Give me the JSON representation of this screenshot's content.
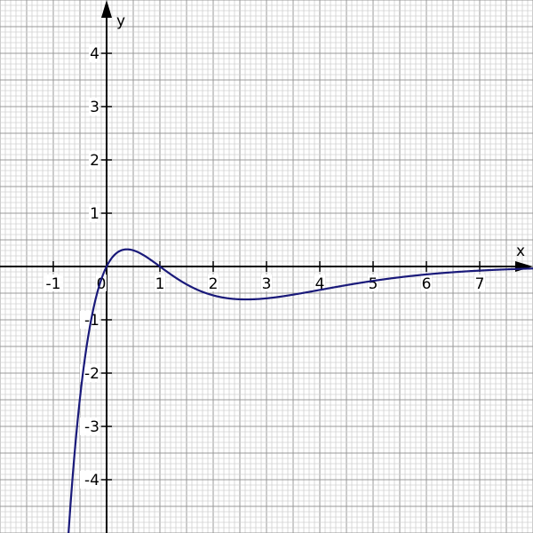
{
  "chart_data": {
    "type": "line",
    "title": "",
    "xlabel": "x",
    "ylabel": "y",
    "xlim": [
      -2,
      8
    ],
    "ylim": [
      -5,
      5
    ],
    "x_ticks": [
      "-1",
      "0",
      "1",
      "2",
      "3",
      "4",
      "5",
      "6",
      "7"
    ],
    "y_ticks": [
      "-4",
      "-3",
      "-2",
      "-1",
      "1",
      "2",
      "3",
      "4"
    ],
    "grid": true,
    "grid_minor_step": 0.1,
    "grid_medium_step": 0.5,
    "series": [
      {
        "function": "y = 2x(1 - x)e^(-x)",
        "color": "#1a1a7a",
        "x": [
          -0.72,
          -0.6,
          -0.4,
          -0.2,
          0,
          0.2,
          0.382,
          0.6,
          0.8,
          1,
          1.5,
          2,
          2.618,
          3,
          4,
          5,
          6,
          7,
          8
        ],
        "y": [
          -5.09,
          -3.5,
          -1.67,
          -0.59,
          0,
          0.26,
          0.3,
          0.26,
          0.14,
          0,
          -0.33,
          -0.54,
          -0.62,
          -0.6,
          -0.44,
          -0.27,
          -0.15,
          -0.08,
          -0.04
        ]
      }
    ]
  }
}
